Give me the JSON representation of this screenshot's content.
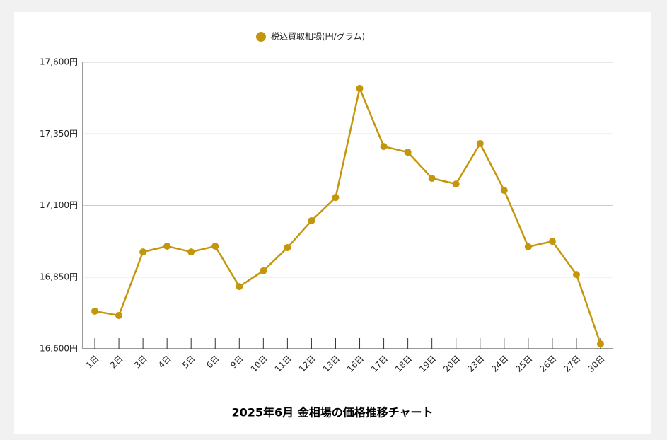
{
  "chart_data": {
    "type": "line",
    "title": "2025年6月 金相場の価格推移チャート",
    "categories": [
      "1日",
      "2日",
      "3日",
      "4日",
      "5日",
      "6日",
      "9日",
      "10日",
      "11日",
      "12日",
      "13日",
      "16日",
      "17日",
      "18日",
      "19日",
      "20日",
      "23日",
      "24日",
      "25日",
      "26日",
      "27日",
      "30日"
    ],
    "series": [
      {
        "name": "税込買取相場(円/グラム)",
        "color": "#c4960c",
        "values": [
          16731,
          16716,
          16938,
          16958,
          16938,
          16958,
          16817,
          16872,
          16953,
          17047,
          17128,
          17509,
          17306,
          17286,
          17195,
          17175,
          17316,
          17153,
          16956,
          16975,
          16859,
          16617
        ]
      }
    ],
    "ylim": [
      16600,
      17600
    ],
    "yticks": [
      {
        "value": 16600,
        "label": "16,600円"
      },
      {
        "value": 16850,
        "label": "16,850円"
      },
      {
        "value": 17100,
        "label": "17,100円"
      },
      {
        "value": 17350,
        "label": "17,350円"
      },
      {
        "value": 17600,
        "label": "17,600円"
      }
    ],
    "grid": true,
    "legend": "top"
  }
}
